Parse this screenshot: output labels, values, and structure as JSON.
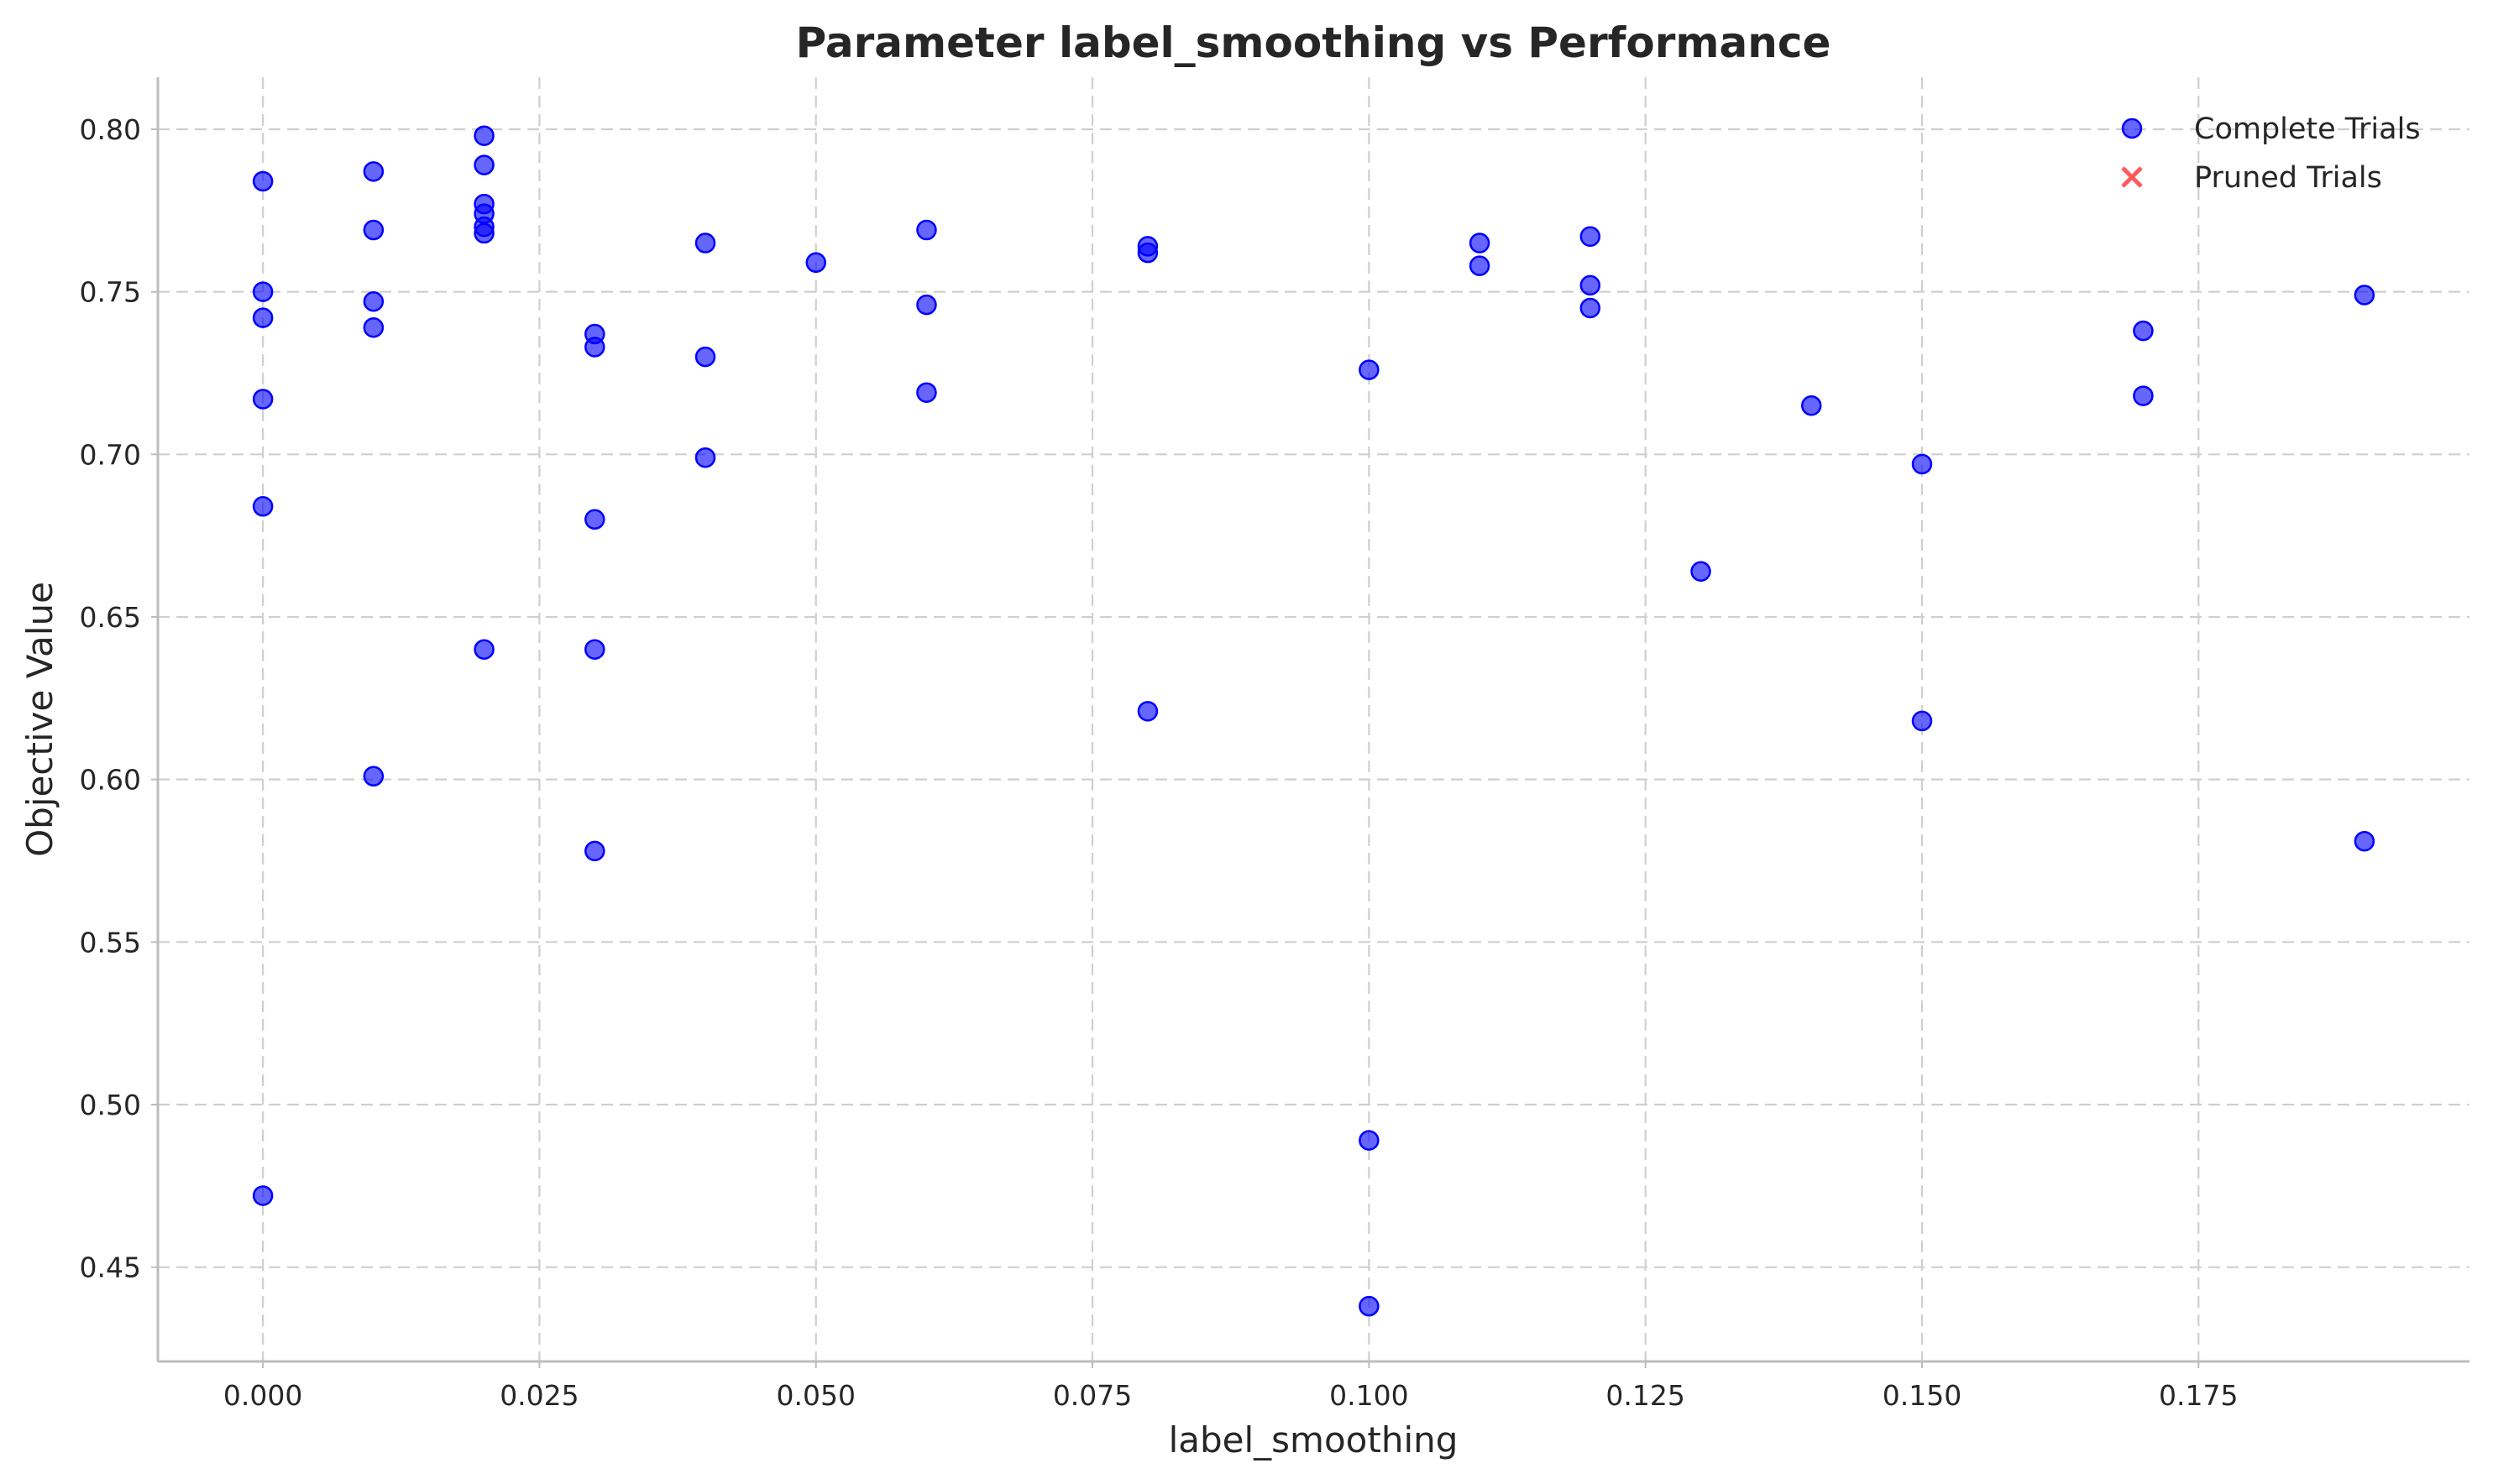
{
  "chart_data": {
    "type": "scatter",
    "title": "Parameter label_smoothing vs Performance",
    "xlabel": "label_smoothing",
    "ylabel": "Objective Value",
    "xlim": [
      -0.0095,
      0.1995
    ],
    "ylim": [
      0.421,
      0.816
    ],
    "xticks": [
      0.0,
      0.025,
      0.05,
      0.075,
      0.1,
      0.125,
      0.15,
      0.175
    ],
    "xtick_labels": [
      "0.000",
      "0.025",
      "0.050",
      "0.075",
      "0.100",
      "0.125",
      "0.150",
      "0.175"
    ],
    "yticks": [
      0.45,
      0.5,
      0.55,
      0.6,
      0.65,
      0.7,
      0.75,
      0.8
    ],
    "ytick_labels": [
      "0.45",
      "0.50",
      "0.55",
      "0.60",
      "0.65",
      "0.70",
      "0.75",
      "0.80"
    ],
    "grid": true,
    "legend": {
      "placement": "top-right"
    },
    "series": [
      {
        "name": "Complete Trials",
        "marker": "circle",
        "color": "#0000ff",
        "points": [
          [
            0.0,
            0.784
          ],
          [
            0.0,
            0.75
          ],
          [
            0.0,
            0.742
          ],
          [
            0.0,
            0.717
          ],
          [
            0.0,
            0.684
          ],
          [
            0.0,
            0.472
          ],
          [
            0.01,
            0.787
          ],
          [
            0.01,
            0.769
          ],
          [
            0.01,
            0.747
          ],
          [
            0.01,
            0.739
          ],
          [
            0.01,
            0.601
          ],
          [
            0.02,
            0.798
          ],
          [
            0.02,
            0.789
          ],
          [
            0.02,
            0.777
          ],
          [
            0.02,
            0.774
          ],
          [
            0.02,
            0.77
          ],
          [
            0.02,
            0.768
          ],
          [
            0.02,
            0.64
          ],
          [
            0.03,
            0.737
          ],
          [
            0.03,
            0.733
          ],
          [
            0.03,
            0.68
          ],
          [
            0.03,
            0.64
          ],
          [
            0.03,
            0.578
          ],
          [
            0.04,
            0.765
          ],
          [
            0.04,
            0.73
          ],
          [
            0.04,
            0.699
          ],
          [
            0.05,
            0.759
          ],
          [
            0.06,
            0.769
          ],
          [
            0.06,
            0.746
          ],
          [
            0.06,
            0.719
          ],
          [
            0.08,
            0.764
          ],
          [
            0.08,
            0.762
          ],
          [
            0.08,
            0.621
          ],
          [
            0.1,
            0.726
          ],
          [
            0.1,
            0.489
          ],
          [
            0.1,
            0.438
          ],
          [
            0.11,
            0.765
          ],
          [
            0.11,
            0.758
          ],
          [
            0.12,
            0.767
          ],
          [
            0.12,
            0.752
          ],
          [
            0.12,
            0.745
          ],
          [
            0.13,
            0.664
          ],
          [
            0.14,
            0.715
          ],
          [
            0.15,
            0.697
          ],
          [
            0.15,
            0.618
          ],
          [
            0.17,
            0.738
          ],
          [
            0.17,
            0.718
          ],
          [
            0.19,
            0.749
          ],
          [
            0.19,
            0.581
          ]
        ]
      },
      {
        "name": "Pruned Trials",
        "marker": "x",
        "color": "#ff5a5a",
        "points": []
      }
    ]
  }
}
